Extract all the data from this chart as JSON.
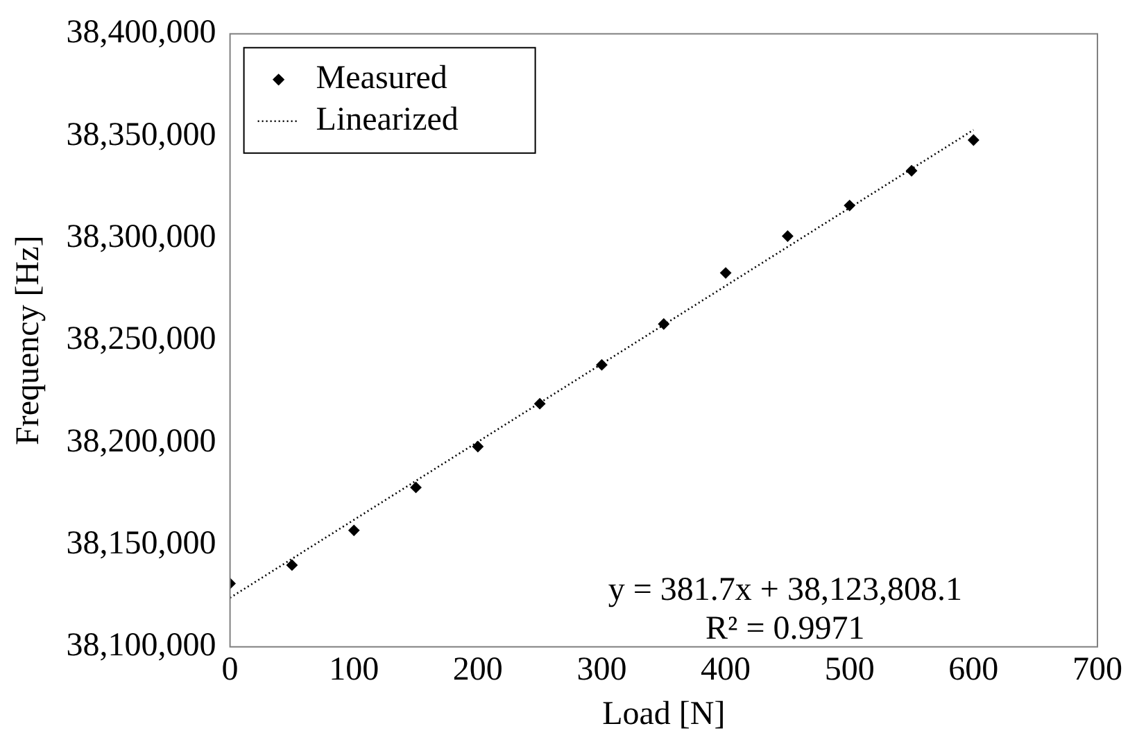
{
  "chart_data": {
    "type": "scatter",
    "xlabel": "Load [N]",
    "ylabel": "Frequency [Hz]",
    "x": [
      0,
      50,
      100,
      150,
      200,
      250,
      300,
      350,
      400,
      450,
      500,
      550,
      600
    ],
    "series": [
      {
        "name": "Measured",
        "color": "#000000",
        "marker": "diamond",
        "values": [
          38131000,
          38140000,
          38157000,
          38178000,
          38198000,
          38219000,
          38238000,
          38258000,
          38283000,
          38301000,
          38316000,
          38333000,
          38348000
        ]
      },
      {
        "name": "Linearized",
        "type": "line",
        "color": "#000000",
        "marker": "none",
        "line_style": "dotted",
        "x": [
          0,
          600
        ],
        "values": [
          38124000,
          38353000
        ]
      }
    ],
    "xlim": [
      0,
      700
    ],
    "xticks": [
      0,
      100,
      200,
      300,
      400,
      500,
      600,
      700
    ],
    "ylim": [
      38100000,
      38400000
    ],
    "yticks": [
      {
        "value": 38100000,
        "label": "38,100,000"
      },
      {
        "value": 38150000,
        "label": "38,150,000"
      },
      {
        "value": 38200000,
        "label": "38,200,000"
      },
      {
        "value": 38250000,
        "label": "38,250,000"
      },
      {
        "value": 38300000,
        "label": "38,300,000"
      },
      {
        "value": 38350000,
        "label": "38,350,000"
      },
      {
        "value": 38400000,
        "label": "38,400,000"
      }
    ],
    "grid": false,
    "legend": "top left",
    "annotations": [
      "y = 381.7x + 38,123,808.1",
      "R² = 0.9971"
    ]
  }
}
